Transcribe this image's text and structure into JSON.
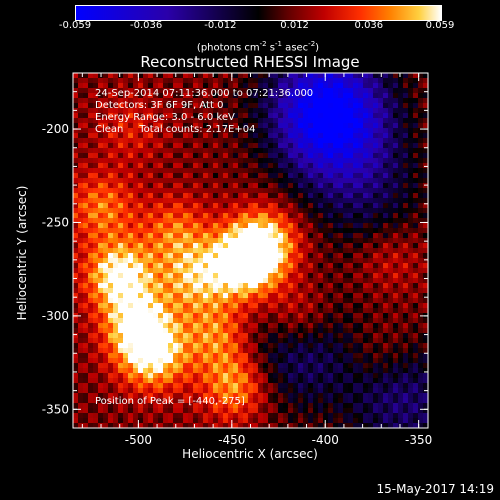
{
  "colorbar": {
    "ticks": [
      "-0.059",
      "-0.036",
      "-0.012",
      "0.012",
      "0.036",
      "0.059"
    ],
    "tick_values": [
      -0.059,
      -0.036,
      -0.012,
      0.012,
      0.036,
      0.059
    ],
    "range": [
      -0.059,
      0.059
    ],
    "unit_parts": [
      "(photons cm",
      "-2",
      " s",
      "-1",
      " asec",
      "-2",
      ")"
    ]
  },
  "annotations": {
    "time_range": "24-Sep-2014 07:11:36.000 to 07:21:36.000",
    "detectors": "Detectors: 3F 6F 9F, Att 0",
    "energy": "Energy Range: 3.0 - 6.0 keV",
    "clean": "Clean     Total counts: 2.17E+04",
    "peak": "Position of Peak = [-440,-275]"
  },
  "footer": {
    "timestamp": "15-May-2017 14:19"
  },
  "colors": {
    "background": "#000000",
    "axis": "#ffffff",
    "peak_highlight": "#ffffc0",
    "negative": "#3a1880"
  },
  "chart_data": {
    "type": "heatmap",
    "title": "Reconstructed RHESSI Image",
    "xlabel": "Heliocentric X (arcsec)",
    "ylabel": "Heliocentric Y (arcsec)",
    "xlim": [
      -535,
      -345
    ],
    "ylim": [
      -360,
      -170
    ],
    "xticks": [
      -500,
      -450,
      -400,
      -350
    ],
    "xtick_labels": [
      "-500",
      "-450",
      "-400",
      "-350"
    ],
    "yticks": [
      -350,
      -300,
      -250,
      -200
    ],
    "ytick_labels": [
      "-350",
      "-300",
      "-250",
      "-200"
    ],
    "colormap": "blue-black-red-yellow-white",
    "zrange": [
      -0.059,
      0.059
    ],
    "peak": [
      -440,
      -275
    ],
    "features": [
      {
        "x": -443,
        "y": -272,
        "value": 0.059
      },
      {
        "x": -510,
        "y": -278,
        "value": 0.05
      },
      {
        "x": -500,
        "y": -305,
        "value": 0.046
      },
      {
        "x": -492,
        "y": -322,
        "value": 0.042
      },
      {
        "x": -520,
        "y": -242,
        "value": 0.028
      },
      {
        "x": -448,
        "y": -337,
        "value": 0.036
      },
      {
        "x": -458,
        "y": -310,
        "value": 0.03
      },
      {
        "x": -470,
        "y": -280,
        "value": 0.034
      },
      {
        "x": -432,
        "y": -260,
        "value": 0.04
      },
      {
        "x": -415,
        "y": -300,
        "value": 0.024
      },
      {
        "x": -480,
        "y": -255,
        "value": 0.026
      },
      {
        "x": -505,
        "y": -200,
        "value": 0.014
      },
      {
        "x": -365,
        "y": -270,
        "value": 0.012
      },
      {
        "x": -370,
        "y": -320,
        "value": 0.01
      },
      {
        "x": -395,
        "y": -200,
        "value": -0.04
      },
      {
        "x": -400,
        "y": -185,
        "value": -0.045
      },
      {
        "x": -415,
        "y": -318,
        "value": -0.03
      },
      {
        "x": -358,
        "y": -345,
        "value": -0.03
      },
      {
        "x": -378,
        "y": -235,
        "value": -0.02
      }
    ]
  }
}
